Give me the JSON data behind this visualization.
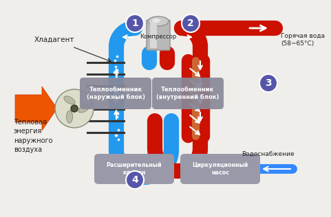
{
  "bg_color": "#f0eeea",
  "blue": "#2299ee",
  "blue_light": "#88ccff",
  "blue_mid": "#55aaee",
  "red": "#cc1100",
  "red_bright": "#ee2200",
  "orange": "#ee5500",
  "gray_comp": "#aaaaaa",
  "gray_box": "#8888aa",
  "gray_box2": "#9999bb",
  "purple": "#5555aa",
  "white": "#ffffff",
  "brown": "#cc6633",
  "black": "#222222",
  "labels": {
    "khladagent": "Хладагент",
    "compressor": "Компрессор",
    "hot_water": "Горячая вода\n(58~65°C)",
    "heat_ex_outer": "Теплообменник\n(наружный блок)",
    "heat_ex_inner": "Теплообменник\n(внутренний блок)",
    "heat_energy": "Тепловая\nэнергия\nнаружного\nвоздуха",
    "expansion": "Расширительный\nклапан",
    "circulation": "Циркуляционный\nнасос",
    "water_supply": "Водоснабжение"
  },
  "pipe_lw": 16,
  "pipe_lw_sm": 10
}
